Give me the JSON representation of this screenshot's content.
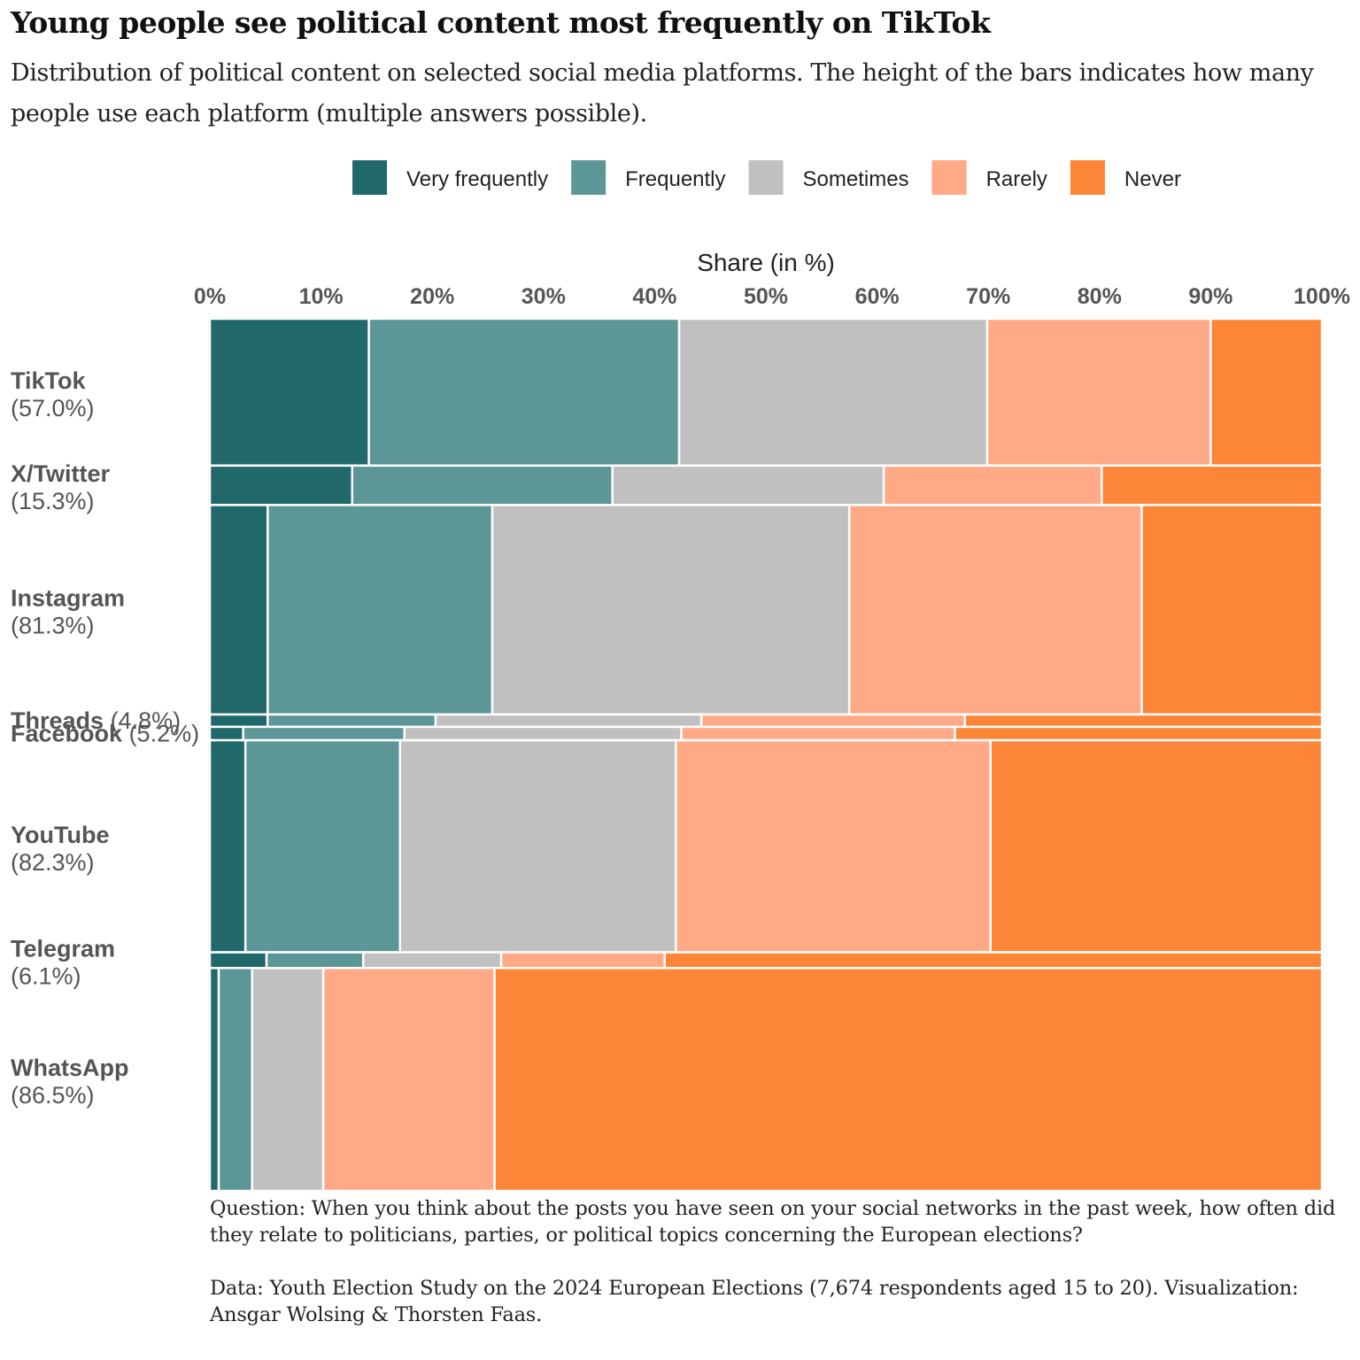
{
  "title": "Young people see political content most frequently on TikTok",
  "subtitle": "Distribution of political content on selected social media platforms. The height of the bars indicates how many people use each platform (multiple answers possible).",
  "caption": {
    "question": "Question: When you think about the posts you have seen on your social networks in the past week, how often did they relate to politicians, parties, or political topics concerning the European elections?",
    "source": "Data: Youth Election Study on the 2024 European Elections (7,674 respondents aged 15 to 20). Visualization: Ansgar Wolsing & Thorsten Faas."
  },
  "chart_data": {
    "type": "bar",
    "subtype": "mosaic (100% stacked horizontal bars, bar height proportional to platform usage)",
    "xlabel": "Share (in %)",
    "xlim": [
      0,
      100
    ],
    "x_ticks": [
      "0%",
      "10%",
      "20%",
      "30%",
      "40%",
      "50%",
      "60%",
      "70%",
      "80%",
      "90%",
      "100%"
    ],
    "x_axis_position": "top",
    "legend_position": "top",
    "grid": false,
    "series": [
      {
        "name": "Very frequently",
        "color": "#21686a"
      },
      {
        "name": "Frequently",
        "color": "#5c9696"
      },
      {
        "name": "Sometimes",
        "color": "#c0c0c0"
      },
      {
        "name": "Rarely",
        "color": "#ffa987"
      },
      {
        "name": "Never",
        "color": "#fc8537"
      }
    ],
    "categories": [
      {
        "name": "TikTok",
        "usage": 57.0,
        "usage_label": "(57.0%)",
        "label_layout": "stacked",
        "values": [
          14.3,
          27.9,
          27.7,
          20.1,
          10.0
        ]
      },
      {
        "name": "X/Twitter",
        "usage": 15.3,
        "usage_label": "(15.3%)",
        "label_layout": "stacked",
        "values": [
          12.8,
          23.4,
          24.4,
          19.6,
          19.8
        ]
      },
      {
        "name": "Instagram",
        "usage": 81.3,
        "usage_label": "(81.3%)",
        "label_layout": "stacked",
        "values": [
          5.2,
          20.2,
          32.1,
          26.3,
          16.2
        ]
      },
      {
        "name": "Threads",
        "usage": 4.8,
        "usage_label": "(4.8%)",
        "label_layout": "inline",
        "values": [
          5.2,
          15.1,
          23.9,
          23.7,
          32.1
        ]
      },
      {
        "name": "Facebook",
        "usage": 5.2,
        "usage_label": "(5.2%)",
        "label_layout": "inline",
        "values": [
          3.0,
          14.5,
          24.9,
          24.6,
          33.0
        ]
      },
      {
        "name": "YouTube",
        "usage": 82.3,
        "usage_label": "(82.3%)",
        "label_layout": "stacked",
        "values": [
          3.2,
          13.9,
          24.8,
          28.3,
          29.8
        ]
      },
      {
        "name": "Telegram",
        "usage": 6.1,
        "usage_label": "(6.1%)",
        "label_layout": "stacked",
        "values": [
          5.1,
          8.7,
          12.4,
          14.7,
          59.1
        ]
      },
      {
        "name": "WhatsApp",
        "usage": 86.5,
        "usage_label": "(86.5%)",
        "label_layout": "stacked",
        "values": [
          0.8,
          3.0,
          6.4,
          15.4,
          74.4
        ]
      }
    ]
  }
}
